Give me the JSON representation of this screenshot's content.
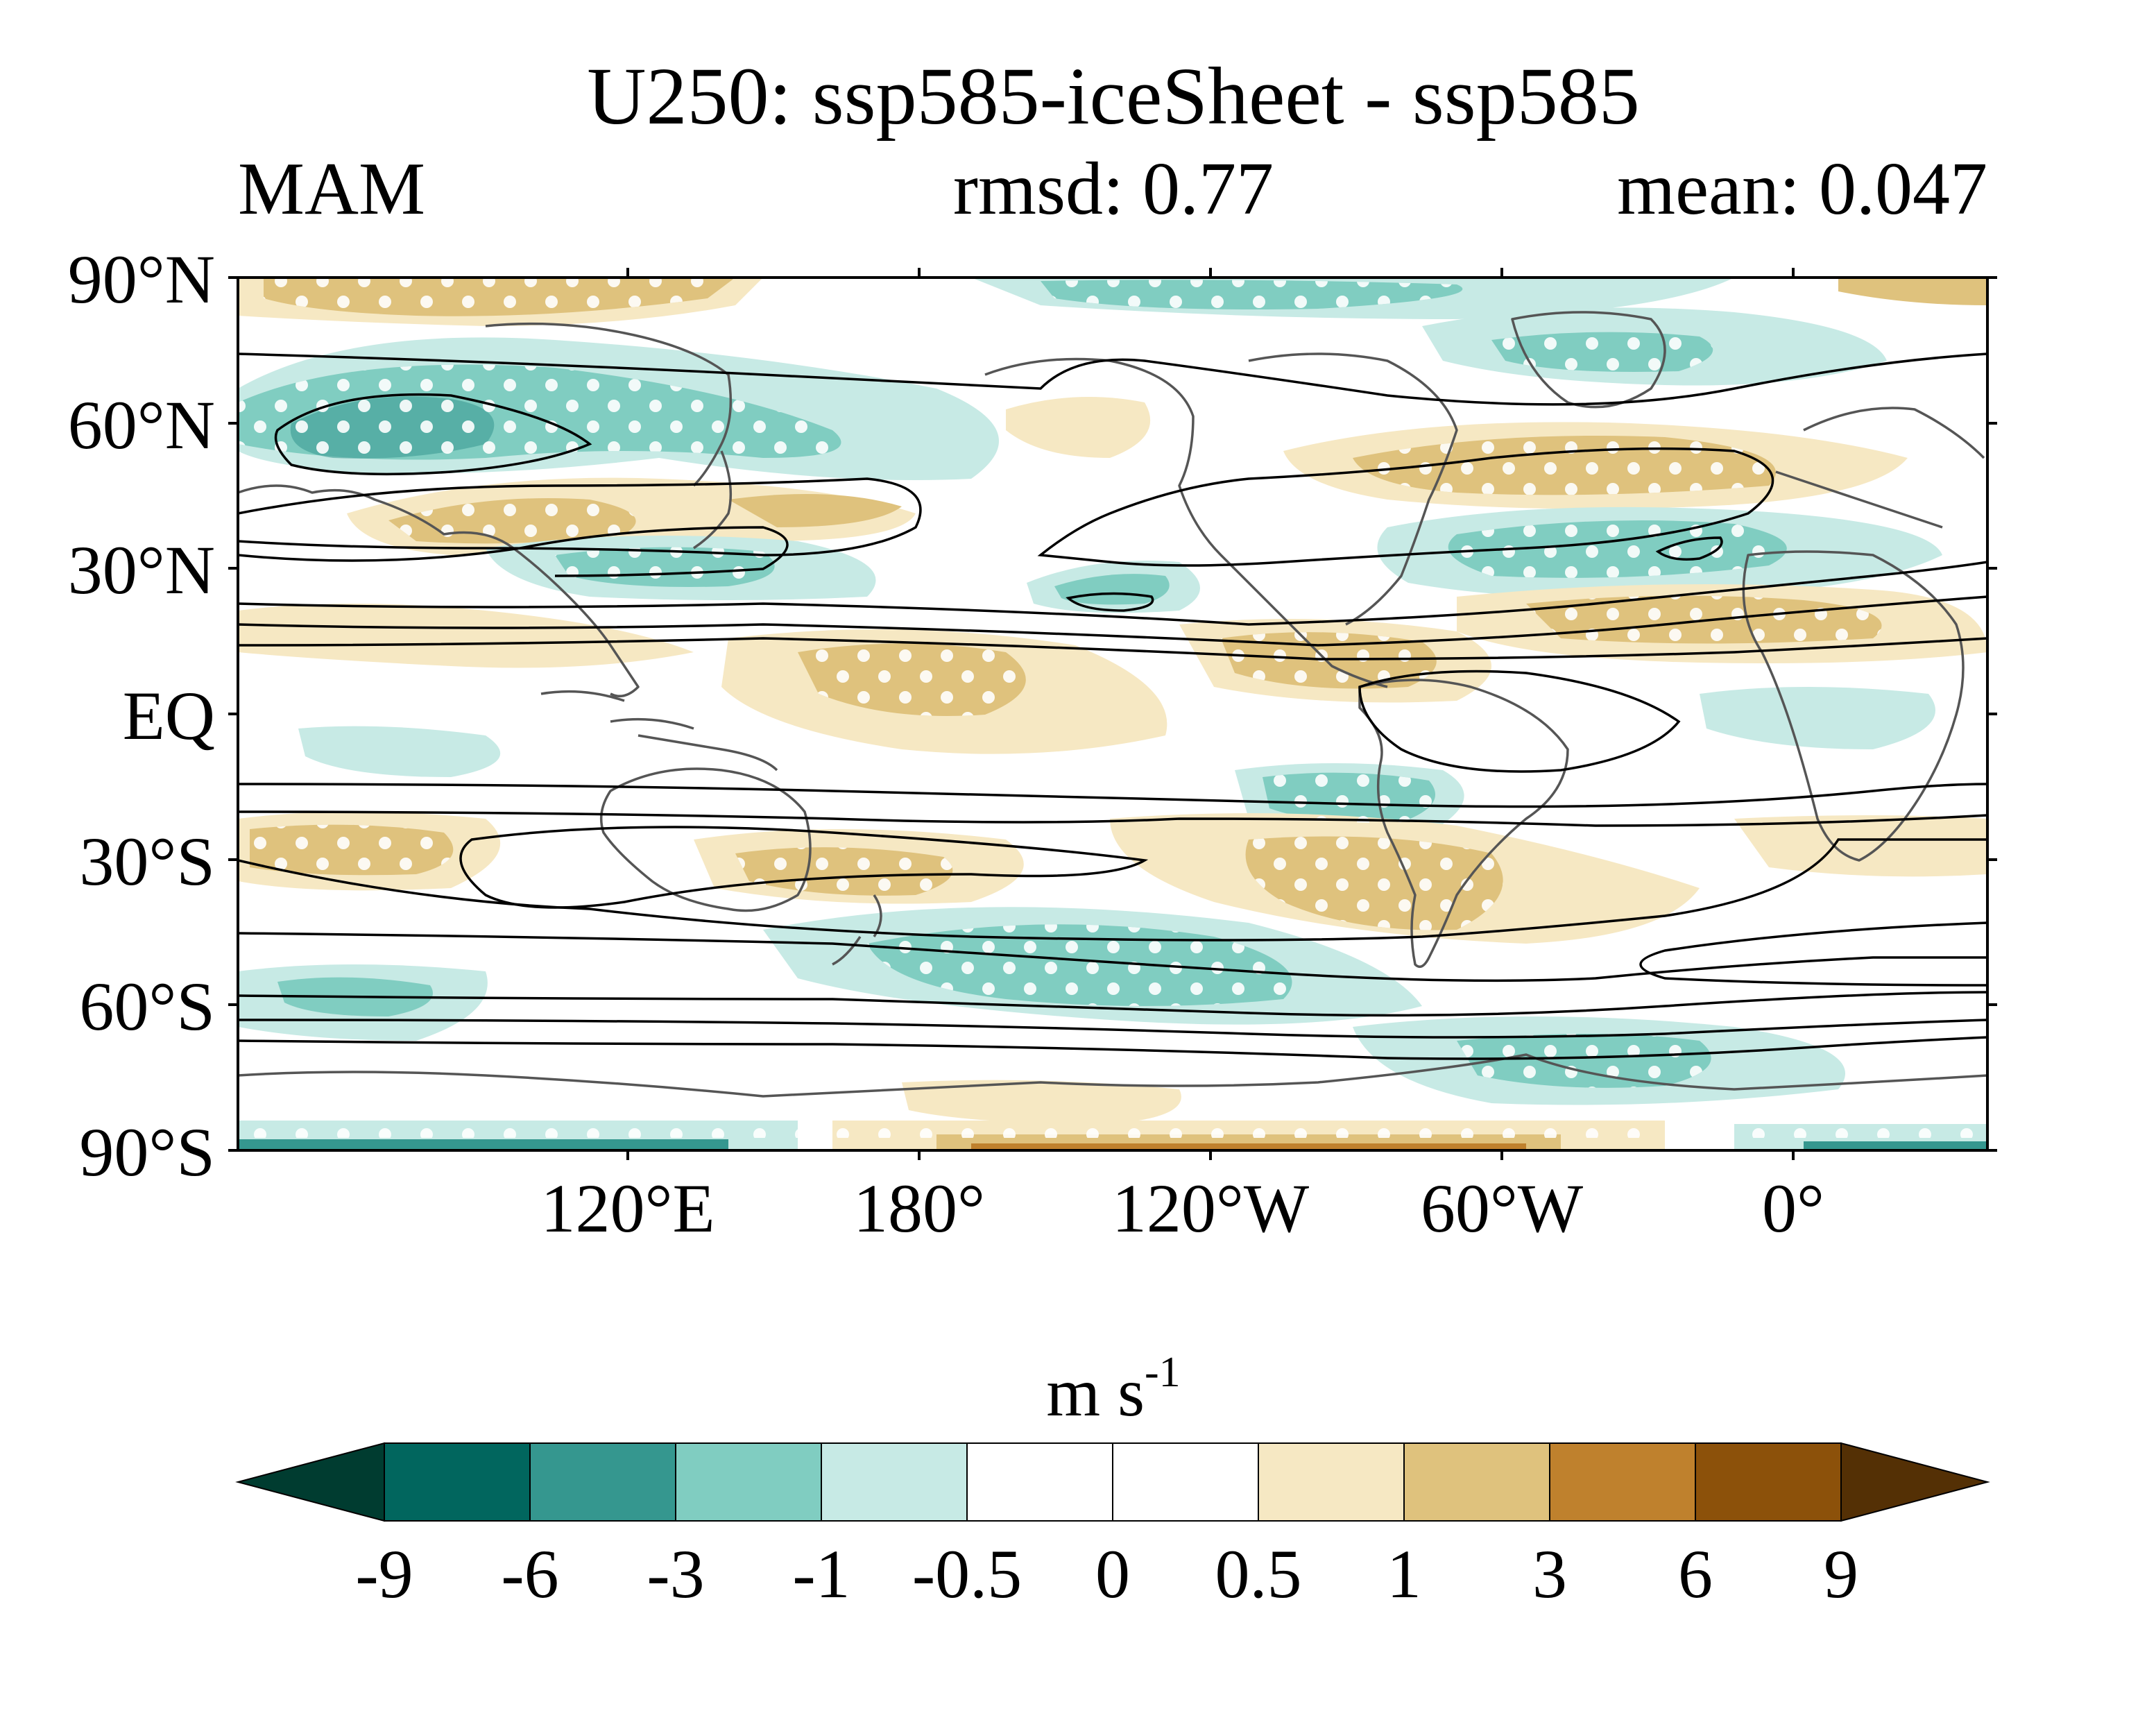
{
  "title": "U250: ssp585-iceSheet - ssp585",
  "subtitle": {
    "left": "MAM",
    "center": "rmsd: 0.77",
    "right": "mean: 0.047"
  },
  "lat_labels": [
    "90°N",
    "60°N",
    "30°N",
    "EQ",
    "30°S",
    "60°S",
    "90°S"
  ],
  "lon_labels": [
    "120°E",
    "180°",
    "120°W",
    "60°W",
    "0°"
  ],
  "colorbar": {
    "units_main": "m s",
    "units_sup": "-1",
    "levels": [
      "-9",
      "-6",
      "-3",
      "-1",
      "-0.5",
      "0",
      "0.5",
      "1",
      "3",
      "6",
      "9"
    ],
    "colors": [
      "#003c30",
      "#01665e",
      "#35978f",
      "#80cdc1",
      "#c7eae5",
      "#ffffff",
      "#ffffff",
      "#f6e8c3",
      "#dfc27d",
      "#bf812d",
      "#8c510a",
      "#543005"
    ]
  },
  "map_colors": {
    "coast": "#555555",
    "contour": "#000000",
    "stipple": "#ffffff"
  }
}
